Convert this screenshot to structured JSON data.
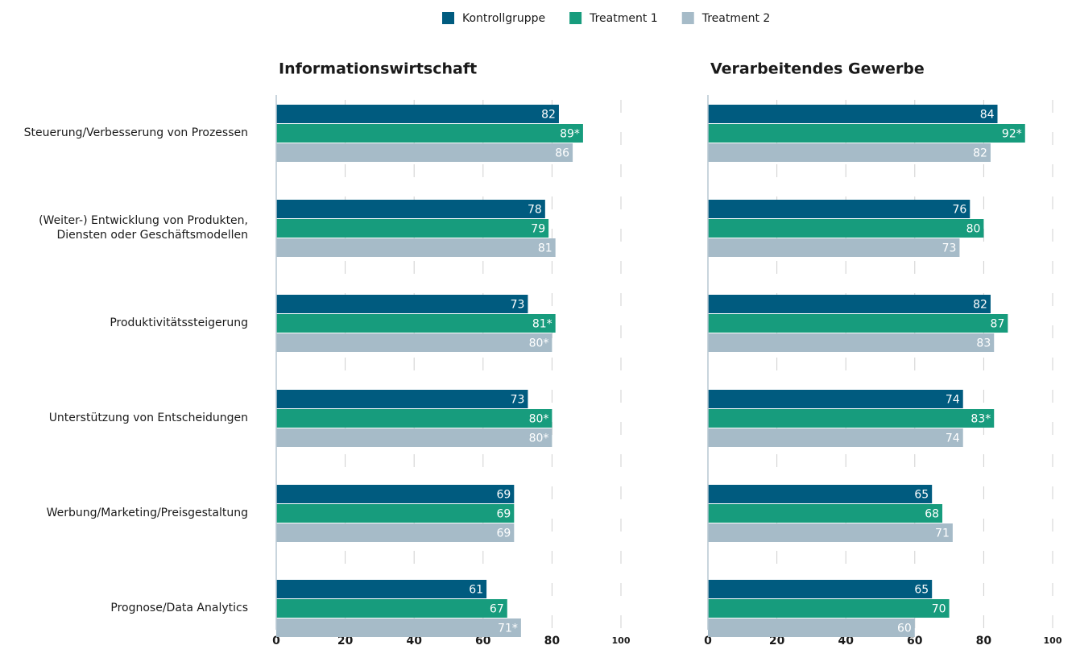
{
  "chart_data": [
    {
      "type": "bar",
      "orientation": "horizontal",
      "title": "Informationswirtschaft",
      "categories": [
        "Steuerung/Verbesserung von Prozessen",
        "(Weiter-) Entwicklung von Produkten,\nDiensten oder Geschäftsmodellen",
        "Produktivitätssteigerung",
        "Unterstützung von Entscheidungen",
        "Werbung/Marketing/Preisgestaltung",
        "Prognose/Data Analytics"
      ],
      "series": [
        {
          "name": "Kontrollgruppe",
          "color": "#005b7f",
          "values": [
            82,
            78,
            73,
            73,
            69,
            61
          ]
        },
        {
          "name": "Treatment 1",
          "color": "#179c7d",
          "values": [
            89,
            79,
            81,
            80,
            69,
            67
          ],
          "value_labels": [
            "89*",
            "79",
            "81*",
            "80*",
            "69",
            "67"
          ]
        },
        {
          "name": "Treatment 2",
          "color": "#a6bbc8",
          "values": [
            86,
            81,
            80,
            80,
            69,
            71
          ],
          "value_labels": [
            "86",
            "81",
            "80*",
            "80*",
            "69",
            "71*"
          ]
        }
      ],
      "xlim": [
        0,
        100
      ],
      "xticks": [
        0,
        20,
        40,
        60,
        80,
        100
      ],
      "grid": true
    },
    {
      "type": "bar",
      "orientation": "horizontal",
      "title": "Verarbeitendes Gewerbe",
      "series": [
        {
          "color": "#005b7f",
          "values": [
            84,
            76,
            82,
            74,
            65,
            65
          ]
        },
        {
          "color": "#179c7d",
          "values": [
            92,
            80,
            87,
            83,
            68,
            70
          ],
          "value_labels": [
            "92*",
            "80",
            "87",
            "83*",
            "68",
            "70"
          ]
        },
        {
          "color": "#a6bbc8",
          "values": [
            82,
            73,
            83,
            74,
            71,
            60
          ]
        }
      ],
      "xlim": [
        0,
        100
      ],
      "xticks": [
        0,
        20,
        40,
        60,
        80,
        100
      ],
      "grid": true
    }
  ]
}
